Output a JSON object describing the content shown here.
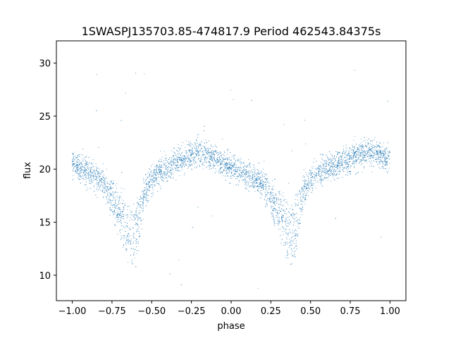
{
  "chart_data": {
    "type": "scatter",
    "title": "1SWASPJ135703.85-474817.9 Period 462543.84375s",
    "xlabel": "phase",
    "ylabel": "flux",
    "xlim": [
      -1.1,
      1.1
    ],
    "ylim": [
      7.6,
      32.1
    ],
    "xticks": [
      -1.0,
      -0.75,
      -0.5,
      -0.25,
      0.0,
      0.25,
      0.5,
      0.75,
      1.0
    ],
    "xtick_labels": [
      "−1.00",
      "−0.75",
      "−0.50",
      "−0.25",
      "0.00",
      "0.25",
      "0.50",
      "0.75",
      "1.00"
    ],
    "yticks": [
      10,
      15,
      20,
      25,
      30
    ],
    "ytick_labels": [
      "10",
      "15",
      "20",
      "25",
      "30"
    ],
    "grid": false,
    "legend": "none",
    "marker_color": "#1f77b4",
    "series": [
      {
        "curve_x": [
          -1.0,
          -0.95,
          -0.9,
          -0.85,
          -0.8,
          -0.75,
          -0.7,
          -0.66,
          -0.62,
          -0.6,
          -0.58,
          -0.55,
          -0.5,
          -0.45,
          -0.4,
          -0.35,
          -0.3,
          -0.25,
          -0.2,
          -0.15,
          -0.1,
          -0.05,
          0.0,
          0.05,
          0.1,
          0.15,
          0.2,
          0.25,
          0.3,
          0.34,
          0.38,
          0.4,
          0.42,
          0.45,
          0.5,
          0.55,
          0.6,
          0.65,
          0.7,
          0.75,
          0.8,
          0.85,
          0.9,
          0.95,
          1.0
        ],
        "upper_y": [
          20.5,
          20.0,
          19.8,
          19.5,
          19.2,
          18.5,
          17.5,
          16.5,
          16.2,
          16.5,
          17.5,
          18.5,
          19.3,
          19.8,
          20.2,
          20.6,
          21.0,
          21.4,
          21.6,
          21.4,
          21.0,
          20.5,
          20.2,
          19.8,
          19.6,
          19.4,
          19.2,
          18.6,
          17.5,
          16.5,
          16.2,
          16.5,
          17.5,
          18.6,
          19.3,
          19.8,
          20.0,
          20.3,
          20.6,
          21.0,
          21.4,
          21.6,
          21.5,
          21.2,
          21.0
        ],
        "lower_y": [
          20.5,
          20.0,
          19.8,
          19.0,
          18.0,
          16.0,
          14.5,
          12.5,
          11.0,
          11.5,
          13.5,
          16.5,
          18.8,
          19.6,
          20.0,
          20.5,
          21.0,
          21.4,
          21.6,
          21.4,
          21.0,
          20.5,
          20.2,
          19.8,
          19.4,
          19.0,
          18.0,
          16.0,
          14.5,
          12.5,
          11.0,
          11.5,
          13.5,
          16.5,
          18.8,
          19.6,
          20.0,
          20.3,
          20.6,
          21.0,
          21.4,
          21.6,
          21.5,
          21.2,
          21.0
        ],
        "scatter_sigma": 0.6,
        "outlier_range": [
          8.5,
          30.5
        ]
      }
    ]
  }
}
